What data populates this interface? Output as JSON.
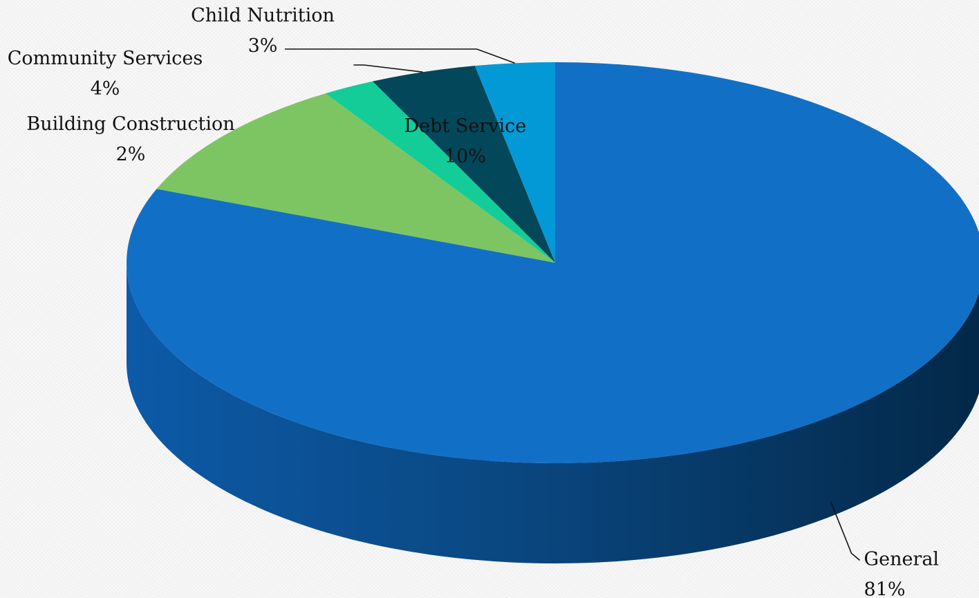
{
  "chart_data": {
    "type": "pie",
    "style": "3d",
    "categories": [
      "General",
      "Debt Service",
      "Building Construction",
      "Community Services",
      "Child Nutrition"
    ],
    "values": [
      81,
      10,
      2,
      4,
      3
    ],
    "value_labels": [
      "81%",
      "10%",
      "2%",
      "4%",
      "3%"
    ],
    "colors": [
      "#1170c6",
      "#7dc562",
      "#14cc98",
      "#03475a",
      "#0399d6"
    ],
    "side_colors": {
      "left": "#0d5aa8",
      "right": "#032848"
    },
    "legend": "none",
    "label_style": "category name and percentage"
  }
}
